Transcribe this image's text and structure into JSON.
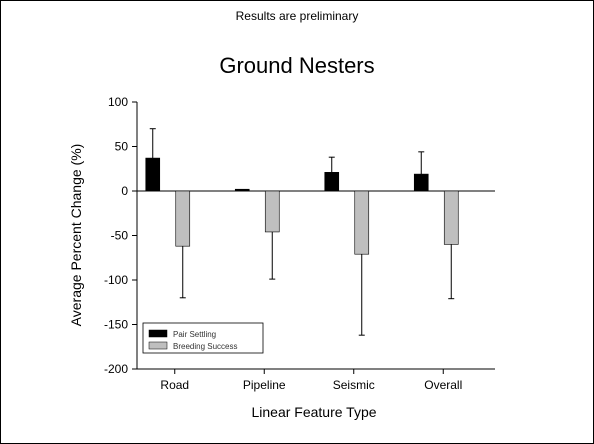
{
  "slide": {
    "note": "Results are preliminary"
  },
  "chart_data": {
    "type": "bar",
    "title": "Ground Nesters",
    "xlabel": "Linear Feature Type",
    "ylabel": "Average Percent Change (%)",
    "categories": [
      "Road",
      "Pipeline",
      "Seismic",
      "Overall"
    ],
    "ylim": [
      -200,
      100
    ],
    "yticks": [
      100,
      50,
      0,
      -50,
      -100,
      -150,
      -200
    ],
    "series": [
      {
        "name": "Pair Settling",
        "color": "#000000",
        "values": [
          37,
          2,
          21,
          19
        ],
        "error_upper": [
          70,
          null,
          38,
          44
        ]
      },
      {
        "name": "Breeding Success",
        "color": "#bfbfbf",
        "values": [
          -62,
          -46,
          -71,
          -60
        ],
        "error_lower": [
          -120,
          -99,
          -162,
          -121
        ]
      }
    ],
    "legend": "bottom-left",
    "grid": false
  }
}
